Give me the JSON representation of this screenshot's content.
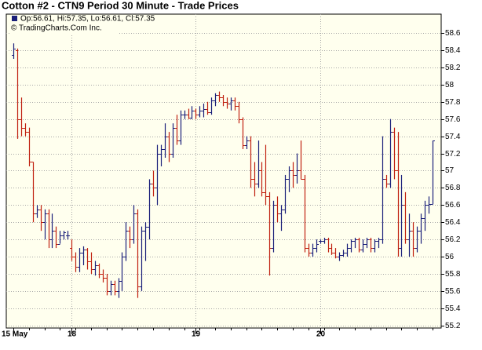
{
  "chart_data": {
    "type": "ohlc",
    "title": "Cotton #2 - CTN9 Period 30 Minute - Trade Prices",
    "legend_text": "Op:56.61, Hi:57.35, Lo:56.61, Cl:57.35",
    "source": "© TradingCharts.Com Inc.",
    "up_color": "#1a1f7a",
    "down_color": "#c0200f",
    "background": "#ffffee",
    "grid": true,
    "ylim": [
      55.17,
      58.82
    ],
    "yticks": [
      55.2,
      55.4,
      55.6,
      55.8,
      56,
      56.2,
      56.4,
      56.6,
      56.8,
      57,
      57.2,
      57.4,
      57.6,
      57.8,
      58,
      58.2,
      58.4,
      58.6
    ],
    "categories": [
      "15 May",
      null,
      null,
      null,
      null,
      null,
      null,
      null,
      null,
      null,
      null,
      null,
      null,
      null,
      null,
      "18",
      null,
      null,
      null,
      null,
      null,
      null,
      null,
      null,
      null,
      null,
      null,
      null,
      null,
      null,
      null,
      null,
      null,
      null,
      null,
      null,
      null,
      null,
      null,
      null,
      null,
      null,
      null,
      null,
      null,
      null,
      null,
      "19",
      null,
      null,
      null,
      null,
      null,
      null,
      null,
      null,
      null,
      null,
      null,
      null,
      null,
      null,
      null,
      null,
      null,
      null,
      null,
      null,
      null,
      null,
      null,
      null,
      null,
      null,
      null,
      null,
      null,
      null,
      null,
      "20",
      null,
      null,
      null,
      null,
      null,
      null,
      null,
      null,
      null,
      null,
      null,
      null,
      null,
      null,
      null,
      null,
      null,
      null,
      null,
      null,
      null,
      null,
      null,
      null,
      null,
      null,
      null,
      null,
      null
    ],
    "ohlc": [
      [
        58.35,
        58.48,
        58.3,
        58.42
      ],
      [
        58.4,
        58.42,
        57.37,
        57.6
      ],
      [
        57.6,
        57.85,
        57.4,
        57.5
      ],
      [
        57.5,
        57.55,
        57.4,
        57.45
      ],
      [
        57.45,
        57.5,
        57.05,
        57.1
      ],
      [
        57.1,
        57.1,
        56.4,
        56.5
      ],
      [
        56.5,
        56.6,
        56.45,
        56.55
      ],
      [
        56.55,
        56.6,
        56.3,
        56.4
      ],
      [
        56.4,
        56.55,
        56.2,
        56.5
      ],
      [
        56.5,
        56.55,
        56.1,
        56.2
      ],
      [
        56.2,
        56.5,
        56.1,
        56.3
      ],
      [
        56.3,
        56.35,
        56.1,
        56.15
      ],
      [
        56.15,
        56.3,
        56.15,
        56.25
      ],
      [
        56.25,
        56.3,
        56.2,
        56.28
      ],
      [
        56.25,
        56.3,
        56.2,
        56.25
      ],
      [
        56.1,
        56.2,
        55.95,
        56.0
      ],
      [
        56.0,
        56.05,
        55.82,
        55.88
      ],
      [
        55.88,
        56.1,
        55.82,
        56.05
      ],
      [
        56.05,
        56.12,
        55.9,
        56.08
      ],
      [
        56.08,
        56.1,
        55.85,
        55.95
      ],
      [
        55.95,
        56.05,
        55.8,
        55.85
      ],
      [
        55.85,
        55.95,
        55.78,
        55.9
      ],
      [
        55.9,
        55.92,
        55.75,
        55.8
      ],
      [
        55.8,
        55.85,
        55.7,
        55.75
      ],
      [
        55.75,
        55.8,
        55.55,
        55.6
      ],
      [
        55.6,
        55.72,
        55.55,
        55.68
      ],
      [
        55.68,
        55.72,
        55.55,
        55.6
      ],
      [
        55.6,
        55.75,
        55.52,
        55.72
      ],
      [
        55.72,
        56.05,
        55.6,
        56.0
      ],
      [
        56.0,
        56.4,
        55.95,
        56.3
      ],
      [
        56.3,
        56.35,
        56.1,
        56.2
      ],
      [
        56.2,
        56.6,
        56.15,
        56.5
      ],
      [
        56.5,
        56.55,
        55.52,
        55.65
      ],
      [
        55.65,
        56.35,
        55.6,
        56.3
      ],
      [
        56.3,
        56.4,
        55.95,
        56.35
      ],
      [
        56.35,
        56.9,
        56.2,
        56.85
      ],
      [
        56.85,
        57.0,
        56.7,
        56.8
      ],
      [
        56.8,
        57.3,
        56.6,
        57.2
      ],
      [
        57.2,
        57.3,
        57.05,
        57.25
      ],
      [
        57.25,
        57.55,
        57.15,
        57.4
      ],
      [
        57.4,
        57.45,
        57.1,
        57.2
      ],
      [
        57.2,
        57.55,
        57.15,
        57.5
      ],
      [
        57.5,
        57.65,
        57.3,
        57.35
      ],
      [
        57.35,
        57.7,
        57.3,
        57.65
      ],
      [
        57.65,
        57.7,
        57.6,
        57.65
      ],
      [
        57.65,
        57.72,
        57.6,
        57.62
      ],
      [
        57.62,
        57.75,
        57.6,
        57.7
      ],
      [
        57.7,
        57.72,
        57.6,
        57.65
      ],
      [
        57.65,
        57.75,
        57.62,
        57.7
      ],
      [
        57.7,
        57.78,
        57.62,
        57.72
      ],
      [
        57.72,
        57.8,
        57.65,
        57.68
      ],
      [
        57.68,
        57.85,
        57.65,
        57.82
      ],
      [
        57.82,
        57.9,
        57.75,
        57.88
      ],
      [
        57.88,
        57.92,
        57.8,
        57.85
      ],
      [
        57.85,
        57.88,
        57.75,
        57.8
      ],
      [
        57.8,
        57.85,
        57.72,
        57.78
      ],
      [
        57.78,
        57.85,
        57.7,
        57.82
      ],
      [
        57.82,
        57.85,
        57.7,
        57.75
      ],
      [
        57.75,
        57.8,
        57.55,
        57.6
      ],
      [
        57.6,
        57.62,
        57.25,
        57.3
      ],
      [
        57.3,
        57.4,
        57.25,
        57.35
      ],
      [
        57.35,
        57.4,
        56.8,
        56.9
      ],
      [
        56.9,
        57.1,
        56.7,
        56.85
      ],
      [
        56.85,
        57.35,
        56.8,
        57.0
      ],
      [
        57.0,
        57.1,
        56.7,
        56.75
      ],
      [
        56.75,
        57.3,
        56.6,
        56.7
      ],
      [
        56.7,
        56.75,
        55.78,
        56.1
      ],
      [
        56.1,
        56.65,
        56.05,
        56.6
      ],
      [
        56.6,
        56.7,
        56.4,
        56.5
      ],
      [
        56.5,
        56.6,
        56.3,
        56.55
      ],
      [
        56.55,
        56.95,
        56.5,
        56.9
      ],
      [
        56.9,
        57.05,
        56.75,
        57.0
      ],
      [
        57.0,
        57.1,
        56.8,
        56.95
      ],
      [
        56.95,
        57.2,
        56.85,
        57.0
      ],
      [
        57.0,
        57.35,
        56.9,
        56.9
      ],
      [
        56.9,
        56.95,
        56.05,
        56.1
      ],
      [
        56.1,
        56.15,
        56.0,
        56.05
      ],
      [
        56.05,
        56.15,
        56.0,
        56.1
      ],
      [
        56.1,
        56.2,
        56.05,
        56.15
      ],
      [
        56.18,
        56.2,
        56.15,
        56.18
      ],
      [
        56.18,
        56.22,
        56.15,
        56.2
      ],
      [
        56.2,
        56.22,
        56.05,
        56.1
      ],
      [
        56.1,
        56.15,
        56.02,
        56.05
      ],
      [
        56.05,
        56.1,
        55.98,
        56.0
      ],
      [
        56.0,
        56.05,
        55.95,
        56.02
      ],
      [
        56.02,
        56.08,
        56.0,
        56.05
      ],
      [
        56.05,
        56.15,
        56.0,
        56.1
      ],
      [
        56.1,
        56.2,
        56.05,
        56.18
      ],
      [
        56.18,
        56.22,
        56.1,
        56.2
      ],
      [
        56.2,
        56.22,
        56.05,
        56.08
      ],
      [
        56.08,
        56.2,
        56.05,
        56.15
      ],
      [
        56.15,
        56.22,
        56.1,
        56.2
      ],
      [
        56.2,
        56.22,
        56.05,
        56.1
      ],
      [
        56.1,
        56.2,
        56.05,
        56.18
      ],
      [
        56.18,
        56.22,
        56.1,
        56.2
      ],
      [
        56.2,
        57.4,
        56.15,
        56.9
      ],
      [
        56.9,
        56.95,
        56.8,
        56.85
      ],
      [
        56.85,
        57.6,
        56.8,
        57.45
      ],
      [
        57.45,
        57.5,
        56.9,
        57.0
      ],
      [
        57.0,
        57.45,
        56.0,
        56.1
      ],
      [
        56.1,
        56.95,
        56.0,
        56.6
      ],
      [
        56.6,
        56.75,
        56.15,
        56.2
      ],
      [
        56.2,
        56.5,
        56.0,
        56.3
      ],
      [
        56.3,
        56.4,
        56.0,
        56.1
      ],
      [
        56.1,
        56.35,
        56.05,
        56.3
      ],
      [
        56.3,
        56.5,
        56.15,
        56.45
      ],
      [
        56.45,
        56.65,
        56.3,
        56.6
      ],
      [
        56.6,
        56.7,
        56.5,
        56.61
      ],
      [
        56.61,
        57.35,
        56.61,
        57.35
      ]
    ]
  }
}
